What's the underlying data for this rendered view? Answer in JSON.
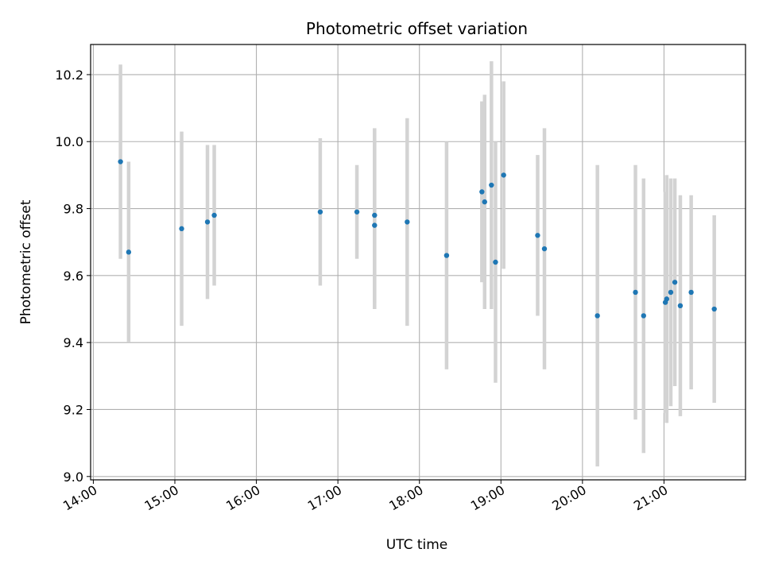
{
  "chart_data": {
    "type": "scatter",
    "title": "Photometric offset variation",
    "xlabel": "UTC time",
    "ylabel": "Photometric offset",
    "x_tick_labels": [
      "14:00",
      "15:00",
      "16:00",
      "17:00",
      "18:00",
      "19:00",
      "20:00",
      "21:00"
    ],
    "y_tick_labels": [
      "9.0",
      "9.2",
      "9.4",
      "9.6",
      "9.8",
      "10.0",
      "10.2"
    ],
    "xlim": [
      "13:58",
      "22:00"
    ],
    "ylim": [
      8.99,
      10.29
    ],
    "grid": true,
    "point_color": "#1f77b4",
    "errorbar_color": "#d3d3d3",
    "points": [
      {
        "t": "14:20",
        "y": 9.94,
        "err": 0.29
      },
      {
        "t": "14:26",
        "y": 9.67,
        "err": 0.27
      },
      {
        "t": "15:05",
        "y": 9.74,
        "err": 0.29
      },
      {
        "t": "15:24",
        "y": 9.76,
        "err": 0.23
      },
      {
        "t": "15:29",
        "y": 9.78,
        "err": 0.21
      },
      {
        "t": "16:47",
        "y": 9.79,
        "err": 0.22
      },
      {
        "t": "17:14",
        "y": 9.79,
        "err": 0.14
      },
      {
        "t": "17:27",
        "y": 9.78,
        "err": 0.26
      },
      {
        "t": "17:27",
        "y": 9.75,
        "err": 0.25
      },
      {
        "t": "17:51",
        "y": 9.76,
        "err": 0.31
      },
      {
        "t": "18:20",
        "y": 9.66,
        "err": 0.34
      },
      {
        "t": "18:46",
        "y": 9.85,
        "err": 0.27
      },
      {
        "t": "18:48",
        "y": 9.82,
        "err": 0.32
      },
      {
        "t": "18:53",
        "y": 9.87,
        "err": 0.37
      },
      {
        "t": "18:56",
        "y": 9.64,
        "err": 0.36
      },
      {
        "t": "19:02",
        "y": 9.9,
        "err": 0.28
      },
      {
        "t": "19:27",
        "y": 9.72,
        "err": 0.24
      },
      {
        "t": "19:32",
        "y": 9.68,
        "err": 0.36
      },
      {
        "t": "20:11",
        "y": 9.48,
        "err": 0.45
      },
      {
        "t": "20:39",
        "y": 9.55,
        "err": 0.38
      },
      {
        "t": "20:45",
        "y": 9.48,
        "err": 0.41
      },
      {
        "t": "21:01",
        "y": 9.52,
        "err": 0.33
      },
      {
        "t": "21:02",
        "y": 9.53,
        "err": 0.37
      },
      {
        "t": "21:05",
        "y": 9.55,
        "err": 0.34
      },
      {
        "t": "21:08",
        "y": 9.58,
        "err": 0.31
      },
      {
        "t": "21:12",
        "y": 9.51,
        "err": 0.33
      },
      {
        "t": "21:20",
        "y": 9.55,
        "err": 0.29
      },
      {
        "t": "21:37",
        "y": 9.5,
        "err": 0.28
      }
    ]
  }
}
